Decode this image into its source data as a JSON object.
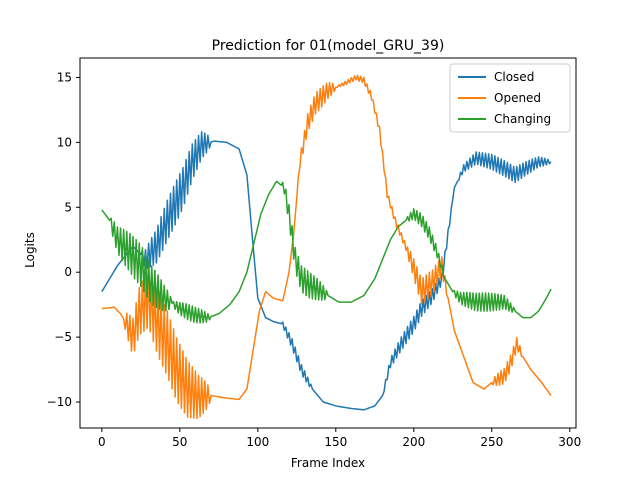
{
  "chart_data": {
    "type": "line",
    "title": "Prediction for 01(model_GRU_39)",
    "xlabel": "Frame Index",
    "ylabel": "Logits",
    "xlim": [
      -14,
      304
    ],
    "ylim": [
      -12,
      16.5
    ],
    "x_ticks": [
      0,
      50,
      100,
      150,
      200,
      250,
      300
    ],
    "y_ticks": [
      -10,
      -5,
      0,
      5,
      10,
      15
    ],
    "x_tick_labels": [
      "0",
      "50",
      "100",
      "150",
      "200",
      "250",
      "300"
    ],
    "y_tick_labels": [
      "−10",
      "−5",
      "0",
      "5",
      "10",
      "15"
    ],
    "grid": false,
    "legend_position": "top-right",
    "x_max": 288,
    "series": [
      {
        "name": "Closed",
        "color": "#1f77b4",
        "anchors": [
          [
            0,
            -1.5
          ],
          [
            10,
            0.5
          ],
          [
            20,
            2.0
          ],
          [
            28,
            1.0
          ],
          [
            35,
            2.0
          ],
          [
            42,
            4.0
          ],
          [
            52,
            6.5
          ],
          [
            58,
            8.5
          ],
          [
            64,
            9.8
          ],
          [
            72,
            10.1
          ],
          [
            80,
            10.0
          ],
          [
            88,
            9.5
          ],
          [
            93,
            7.5
          ],
          [
            97,
            2.0
          ],
          [
            100,
            -2.0
          ],
          [
            105,
            -3.5
          ],
          [
            110,
            -3.8
          ],
          [
            116,
            -4.0
          ],
          [
            122,
            -5.5
          ],
          [
            128,
            -7.5
          ],
          [
            135,
            -9.0
          ],
          [
            142,
            -10.0
          ],
          [
            150,
            -10.3
          ],
          [
            160,
            -10.5
          ],
          [
            168,
            -10.6
          ],
          [
            175,
            -10.3
          ],
          [
            180,
            -9.5
          ],
          [
            185,
            -7.0
          ],
          [
            192,
            -5.5
          ],
          [
            200,
            -4.0
          ],
          [
            205,
            -2.8
          ],
          [
            212,
            -1.8
          ],
          [
            218,
            -0.5
          ],
          [
            222,
            3.0
          ],
          [
            226,
            6.5
          ],
          [
            232,
            8.0
          ],
          [
            240,
            8.8
          ],
          [
            250,
            8.5
          ],
          [
            258,
            8.0
          ],
          [
            265,
            7.5
          ],
          [
            272,
            8.0
          ],
          [
            280,
            8.5
          ],
          [
            288,
            8.5
          ]
        ],
        "noise": [
          [
            25,
            70,
            1.6
          ],
          [
            115,
            135,
            0.4
          ],
          [
            180,
            225,
            0.6
          ],
          [
            228,
            288,
            0.6
          ]
        ]
      },
      {
        "name": "Opened",
        "color": "#ff7f0e",
        "anchors": [
          [
            0,
            -2.8
          ],
          [
            8,
            -2.7
          ],
          [
            12,
            -3.2
          ],
          [
            16,
            -4.0
          ],
          [
            20,
            -5.0
          ],
          [
            24,
            -3.0
          ],
          [
            30,
            -2.0
          ],
          [
            36,
            -4.0
          ],
          [
            42,
            -5.5
          ],
          [
            48,
            -7.5
          ],
          [
            55,
            -9.0
          ],
          [
            62,
            -9.6
          ],
          [
            70,
            -9.5
          ],
          [
            80,
            -9.7
          ],
          [
            88,
            -9.8
          ],
          [
            93,
            -9.0
          ],
          [
            97,
            -6.0
          ],
          [
            101,
            -3.0
          ],
          [
            105,
            -1.5
          ],
          [
            110,
            -2.0
          ],
          [
            116,
            -2.2
          ],
          [
            120,
            0.0
          ],
          [
            123,
            3.0
          ],
          [
            127,
            8.5
          ],
          [
            132,
            11.5
          ],
          [
            137,
            13.0
          ],
          [
            145,
            14.0
          ],
          [
            155,
            14.5
          ],
          [
            163,
            15.0
          ],
          [
            168,
            14.8
          ],
          [
            173,
            13.5
          ],
          [
            178,
            11.0
          ],
          [
            183,
            6.0
          ],
          [
            188,
            4.0
          ],
          [
            193,
            2.5
          ],
          [
            198,
            1.0
          ],
          [
            205,
            -1.5
          ],
          [
            212,
            -0.8
          ],
          [
            218,
            0.5
          ],
          [
            222,
            -2.0
          ],
          [
            226,
            -4.5
          ],
          [
            232,
            -6.5
          ],
          [
            238,
            -8.5
          ],
          [
            245,
            -9.0
          ],
          [
            250,
            -8.5
          ],
          [
            258,
            -8.0
          ],
          [
            262,
            -7.0
          ],
          [
            266,
            -5.5
          ],
          [
            270,
            -6.5
          ],
          [
            275,
            -7.5
          ],
          [
            282,
            -8.5
          ],
          [
            288,
            -9.5
          ]
        ],
        "noise": [
          [
            14,
            70,
            2.5
          ],
          [
            125,
            150,
            0.8
          ],
          [
            150,
            215,
            0.25
          ],
          [
            195,
            222,
            1.0
          ],
          [
            250,
            270,
            0.6
          ]
        ]
      },
      {
        "name": "Changing",
        "color": "#2ca02c",
        "anchors": [
          [
            0,
            4.8
          ],
          [
            5,
            4.0
          ],
          [
            10,
            2.5
          ],
          [
            18,
            1.5
          ],
          [
            25,
            0.5
          ],
          [
            32,
            -1.0
          ],
          [
            40,
            -2.0
          ],
          [
            50,
            -2.8
          ],
          [
            60,
            -3.3
          ],
          [
            68,
            -3.5
          ],
          [
            75,
            -3.2
          ],
          [
            82,
            -2.5
          ],
          [
            88,
            -1.5
          ],
          [
            93,
            0.0
          ],
          [
            97,
            2.0
          ],
          [
            102,
            4.5
          ],
          [
            107,
            6.0
          ],
          [
            112,
            7.0
          ],
          [
            117,
            6.5
          ],
          [
            120,
            4.5
          ],
          [
            124,
            1.0
          ],
          [
            128,
            -0.5
          ],
          [
            133,
            -1.0
          ],
          [
            138,
            -1.3
          ],
          [
            145,
            -1.8
          ],
          [
            152,
            -2.3
          ],
          [
            160,
            -2.3
          ],
          [
            168,
            -1.8
          ],
          [
            175,
            -0.5
          ],
          [
            180,
            1.0
          ],
          [
            185,
            2.5
          ],
          [
            190,
            3.5
          ],
          [
            195,
            4.0
          ],
          [
            200,
            4.5
          ],
          [
            205,
            4.0
          ],
          [
            210,
            3.0
          ],
          [
            215,
            1.5
          ],
          [
            220,
            -0.5
          ],
          [
            225,
            -1.5
          ],
          [
            230,
            -2.0
          ],
          [
            240,
            -2.3
          ],
          [
            250,
            -2.3
          ],
          [
            258,
            -2.3
          ],
          [
            265,
            -3.0
          ],
          [
            270,
            -3.5
          ],
          [
            275,
            -3.5
          ],
          [
            280,
            -3.0
          ],
          [
            285,
            -2.0
          ],
          [
            288,
            -1.3
          ]
        ],
        "noise": [
          [
            5,
            45,
            1.6
          ],
          [
            45,
            70,
            0.6
          ],
          [
            115,
            145,
            1.0
          ],
          [
            195,
            220,
            0.5
          ],
          [
            225,
            265,
            0.7
          ]
        ]
      }
    ]
  }
}
